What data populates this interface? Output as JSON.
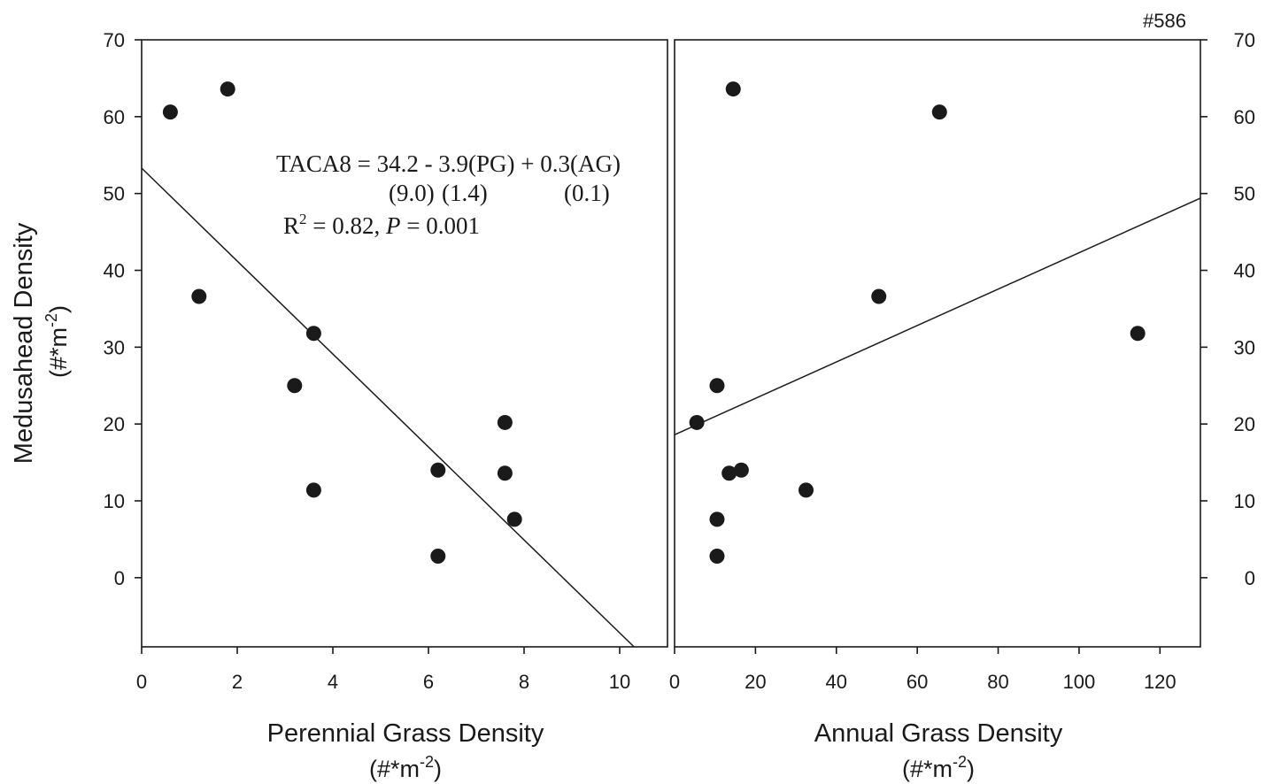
{
  "figure_id": "#586",
  "y_axis": {
    "label": "Medusahead Density",
    "unit_label": "(#*m",
    "unit_exp": "-2",
    "unit_close": ")",
    "ylim": [
      -9,
      70
    ],
    "ticks": [
      "0",
      "10",
      "20",
      "30",
      "40",
      "50",
      "60",
      "70"
    ]
  },
  "equation": {
    "line1": "TACA8 = 34.2 - 3.9(PG) + 0.3(AG)",
    "se_a": "(9.0)",
    "se_b": "(1.4)",
    "se_c": "(0.1)",
    "r2_prefix": "R",
    "r2_exp": "2",
    "r2_mid": " = 0.82, ",
    "p_label": "P",
    "p_value": " = 0.001"
  },
  "chart_data": [
    {
      "type": "scatter",
      "xlabel": "Perennial Grass Density",
      "xunit_label": "(#*m",
      "xunit_exp": "-2",
      "xunit_close": ")",
      "xlim": [
        0,
        11
      ],
      "xticks": [
        "0",
        "2",
        "4",
        "6",
        "8",
        "10"
      ],
      "ylim": [
        -9,
        70
      ],
      "points": [
        {
          "x": 0.6,
          "y": 60.6
        },
        {
          "x": 1.8,
          "y": 63.6
        },
        {
          "x": 1.2,
          "y": 36.6
        },
        {
          "x": 3.6,
          "y": 31.8
        },
        {
          "x": 3.2,
          "y": 25.0
        },
        {
          "x": 3.6,
          "y": 11.4
        },
        {
          "x": 6.2,
          "y": 14.0
        },
        {
          "x": 6.2,
          "y": 2.8
        },
        {
          "x": 7.6,
          "y": 20.2
        },
        {
          "x": 7.6,
          "y": 13.6
        },
        {
          "x": 7.8,
          "y": 7.6
        }
      ],
      "fit_line": [
        {
          "x": 0,
          "y": 53.3
        },
        {
          "x": 10.3,
          "y": -9
        }
      ]
    },
    {
      "type": "scatter",
      "xlabel": "Annual Grass Density",
      "xunit_label": "(#*m",
      "xunit_exp": "-2",
      "xunit_close": ")",
      "xlim": [
        0,
        130
      ],
      "xticks": [
        "0",
        "20",
        "40",
        "60",
        "80",
        "100",
        "120"
      ],
      "ylim": [
        -9,
        70
      ],
      "points": [
        {
          "x": 14.5,
          "y": 63.6
        },
        {
          "x": 65.5,
          "y": 60.6
        },
        {
          "x": 50.5,
          "y": 36.6
        },
        {
          "x": 114.5,
          "y": 31.8
        },
        {
          "x": 10.5,
          "y": 25.0
        },
        {
          "x": 5.5,
          "y": 20.2
        },
        {
          "x": 13.5,
          "y": 13.6
        },
        {
          "x": 16.5,
          "y": 14.0
        },
        {
          "x": 32.5,
          "y": 11.4
        },
        {
          "x": 10.5,
          "y": 7.6
        },
        {
          "x": 10.5,
          "y": 2.8
        }
      ],
      "fit_line": [
        {
          "x": 0,
          "y": 18.6
        },
        {
          "x": 130,
          "y": 49.4
        }
      ]
    }
  ]
}
